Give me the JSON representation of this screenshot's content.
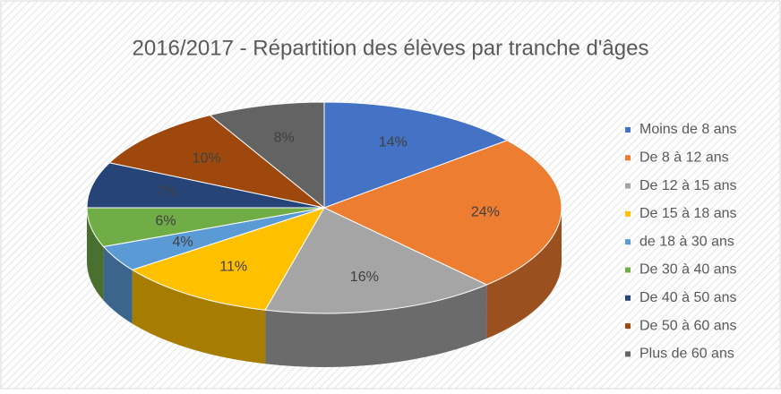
{
  "chart_data": {
    "type": "pie3d",
    "title": "2016/2017 - Répartition des élèves par tranche d'âges",
    "categories": [
      "Moins de 8 ans",
      "De 8 à 12 ans",
      "De 12 à 15 ans",
      "De 15 à 18 ans",
      "de 18 à 30 ans",
      "De 30 à 40 ans",
      "De 40 à 50 ans",
      "De 50 à 60 ans",
      "Plus de 60 ans"
    ],
    "values": [
      14,
      24,
      16,
      11,
      4,
      6,
      7,
      10,
      8
    ],
    "value_labels": [
      "14%",
      "24%",
      "16%",
      "11%",
      "4%",
      "6%",
      "7%",
      "10%",
      "8%"
    ],
    "colors": [
      "#4472c4",
      "#ed7d31",
      "#a5a5a5",
      "#ffc000",
      "#5b9bd5",
      "#70ad47",
      "#264478",
      "#9e480e",
      "#636363"
    ],
    "legend": "right"
  }
}
